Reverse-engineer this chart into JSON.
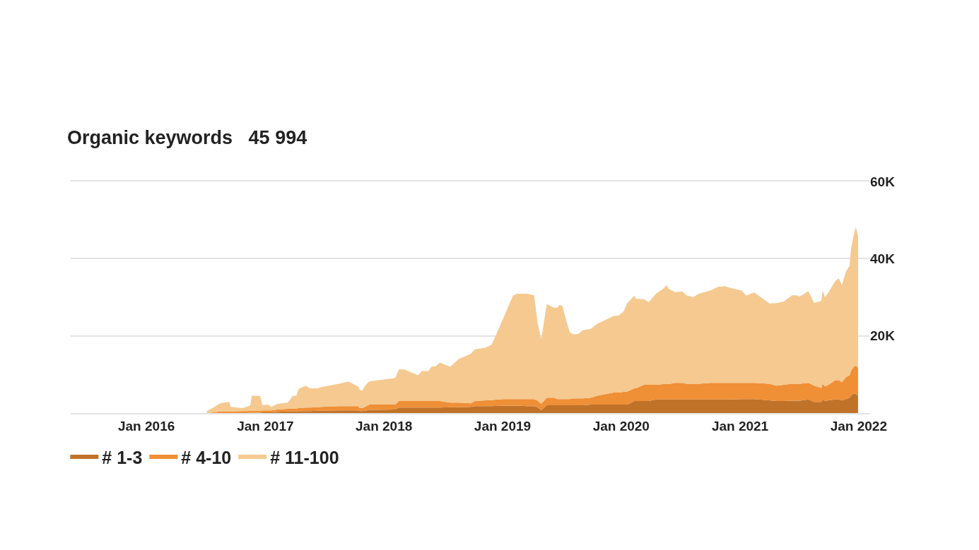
{
  "chart_data": {
    "type": "area",
    "title": "Organic keywords   45 994",
    "stacked": true,
    "x": [
      "2016-07-05",
      "2016-07-27",
      "2016-08-15",
      "2016-09-12",
      "2016-09-16",
      "2016-10-21",
      "2016-11-05",
      "2016-11-16",
      "2016-11-20",
      "2016-12-16",
      "2016-12-23",
      "2017-01-09",
      "2017-01-20",
      "2017-02-07",
      "2017-03-11",
      "2017-03-27",
      "2017-04-07",
      "2017-04-13",
      "2017-05-05",
      "2017-05-18",
      "2017-06-12",
      "2017-06-22",
      "2017-08-16",
      "2017-09-13",
      "2017-10-13",
      "2017-10-19",
      "2017-10-26",
      "2017-11-04",
      "2017-11-17",
      "2018-02-05",
      "2018-02-16",
      "2018-03-05",
      "2018-04-16",
      "2018-04-28",
      "2018-05-18",
      "2018-05-27",
      "2018-06-11",
      "2018-06-22",
      "2018-07-24",
      "2018-08-19",
      "2018-09-25",
      "2018-10-08",
      "2018-11-10",
      "2018-11-29",
      "2019-01-03",
      "2019-02-02",
      "2019-02-15",
      "2019-03-17",
      "2019-04-08",
      "2019-04-19",
      "2019-04-30",
      "2019-05-17",
      "2019-06-08",
      "2019-06-19",
      "2019-06-25",
      "2019-07-04",
      "2019-07-14",
      "2019-07-27",
      "2019-08-07",
      "2019-08-22",
      "2019-09-06",
      "2019-09-30",
      "2019-10-19",
      "2019-12-08",
      "2019-12-25",
      "2020-01-09",
      "2020-01-20",
      "2020-02-11",
      "2020-02-15",
      "2020-03-11",
      "2020-03-26",
      "2020-04-17",
      "2020-05-09",
      "2020-05-20",
      "2020-05-26",
      "2020-06-15",
      "2020-07-07",
      "2020-07-20",
      "2020-08-09",
      "2020-08-27",
      "2020-10-03",
      "2020-10-25",
      "2020-11-16",
      "2020-11-27",
      "2021-01-05",
      "2021-01-20",
      "2021-02-13",
      "2021-04-01",
      "2021-04-23",
      "2021-05-15",
      "2021-06-10",
      "2021-06-23",
      "2021-07-04",
      "2021-07-30",
      "2021-08-17",
      "2021-09-08",
      "2021-09-12",
      "2021-09-19",
      "2021-09-30",
      "2021-10-21",
      "2021-11-01",
      "2021-11-10",
      "2021-11-23",
      "2021-12-04",
      "2021-12-08",
      "2021-12-15",
      "2021-12-23",
      "2021-12-30"
    ],
    "series": [
      {
        "name": "# 1-3",
        "color": "#c07229",
        "values": [
          0,
          0,
          0,
          0,
          0,
          0,
          0,
          100,
          100,
          100,
          200,
          200,
          200,
          300,
          400,
          400,
          400,
          500,
          500,
          500,
          600,
          600,
          700,
          700,
          700,
          500,
          500,
          600,
          800,
          900,
          1400,
          1400,
          1400,
          1400,
          1400,
          1400,
          1400,
          1400,
          1500,
          1500,
          1600,
          1800,
          1800,
          1800,
          1900,
          1900,
          1900,
          1800,
          1800,
          1500,
          700,
          2000,
          2000,
          2000,
          2000,
          2000,
          2000,
          2000,
          2000,
          2000,
          2000,
          2200,
          2200,
          2200,
          2200,
          2200,
          2200,
          3100,
          3100,
          3100,
          3100,
          3500,
          3500,
          3500,
          3500,
          3500,
          3500,
          3500,
          3500,
          3500,
          3500,
          3500,
          3500,
          3500,
          3600,
          3600,
          3600,
          3300,
          3100,
          3100,
          3200,
          3200,
          3200,
          3500,
          2900,
          2900,
          3500,
          3100,
          3300,
          3500,
          3500,
          3300,
          3600,
          4000,
          4500,
          5000,
          5000,
          4500
        ]
      },
      {
        "name": "# 4-10",
        "color": "#ef8f36",
        "values": [
          0,
          200,
          400,
          400,
          400,
          500,
          500,
          500,
          500,
          500,
          500,
          500,
          500,
          600,
          700,
          800,
          800,
          800,
          900,
          900,
          900,
          1000,
          1100,
          1100,
          1100,
          800,
          800,
          1000,
          1400,
          1300,
          1700,
          1700,
          1700,
          1700,
          1700,
          1700,
          1700,
          1700,
          1200,
          1200,
          900,
          1300,
          1500,
          1600,
          1700,
          1700,
          1700,
          1800,
          1800,
          1700,
          1700,
          2000,
          2000,
          1600,
          1600,
          1600,
          1600,
          1600,
          1800,
          1800,
          1800,
          1800,
          2300,
          3100,
          3100,
          3300,
          3400,
          3300,
          3300,
          4200,
          4200,
          3800,
          4000,
          4000,
          4000,
          4300,
          4300,
          4100,
          4100,
          4100,
          4300,
          4300,
          4300,
          4300,
          4200,
          4200,
          4200,
          4300,
          4000,
          4200,
          4400,
          4400,
          4400,
          4300,
          4200,
          3600,
          4100,
          3800,
          4000,
          5000,
          5000,
          4700,
          5700,
          5800,
          6400,
          6800,
          7400,
          7100
        ]
      },
      {
        "name": "# 11-100",
        "color": "#f5c990",
        "values": [
          500,
          1300,
          2100,
          2500,
          1200,
          800,
          1100,
          1400,
          3900,
          3800,
          1300,
          1500,
          900,
          1500,
          1600,
          3300,
          3300,
          4900,
          5700,
          5000,
          4900,
          5100,
          5800,
          6400,
          5100,
          4700,
          4500,
          5500,
          6000,
          6900,
          8200,
          8200,
          6700,
          7800,
          7800,
          8900,
          9100,
          10000,
          9300,
          11300,
          12800,
          13400,
          13600,
          14400,
          20900,
          26800,
          27300,
          27300,
          26900,
          20100,
          16700,
          24200,
          23300,
          23700,
          24400,
          24200,
          20900,
          17300,
          16600,
          16700,
          17700,
          17800,
          18600,
          19800,
          20000,
          20900,
          22900,
          24000,
          23200,
          22200,
          21400,
          23600,
          24700,
          25600,
          24700,
          23500,
          23700,
          22900,
          22400,
          23300,
          24000,
          24900,
          25100,
          24700,
          24000,
          22600,
          23500,
          20800,
          21400,
          21600,
          22900,
          22900,
          22600,
          23800,
          21400,
          22600,
          24200,
          23100,
          24000,
          25700,
          26400,
          25100,
          27400,
          28400,
          31500,
          33700,
          35800,
          34400
        ]
      }
    ],
    "xlim": [
      "2015-05-13",
      "2022-02-03"
    ],
    "xticks": [
      {
        "value": "2016-01-01",
        "label": "Jan 2016"
      },
      {
        "value": "2017-01-01",
        "label": "Jan 2017"
      },
      {
        "value": "2018-01-01",
        "label": "Jan 2018"
      },
      {
        "value": "2019-01-01",
        "label": "Jan 2019"
      },
      {
        "value": "2020-01-01",
        "label": "Jan 2020"
      },
      {
        "value": "2021-01-01",
        "label": "Jan 2021"
      },
      {
        "value": "2022-01-01",
        "label": "Jan 2022"
      }
    ],
    "ylim": [
      0,
      60000
    ],
    "yticks": [
      {
        "value": 0,
        "label": null
      },
      {
        "value": 20000,
        "label": "20K"
      },
      {
        "value": 40000,
        "label": "40K"
      },
      {
        "value": 60000,
        "label": "60K"
      }
    ],
    "grid": "y",
    "legend": "bottom left"
  }
}
